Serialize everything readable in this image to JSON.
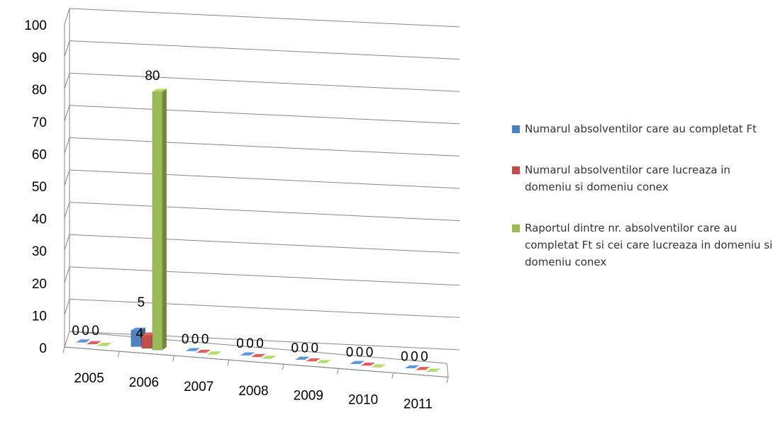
{
  "chart_data": {
    "type": "bar",
    "title": "",
    "xlabel": "",
    "ylabel": "",
    "ylim": [
      0,
      100
    ],
    "yticks": [
      0,
      10,
      20,
      30,
      40,
      50,
      60,
      70,
      80,
      90,
      100
    ],
    "categories": [
      "2005",
      "2006",
      "2007",
      "2008",
      "2009",
      "2010",
      "2011"
    ],
    "grid": true,
    "legend_position": "right",
    "series": [
      {
        "name": "Numarul absolventilor care au completat Ft",
        "color": "#4F81BD",
        "values": [
          0,
          5,
          0,
          0,
          0,
          0,
          0
        ],
        "labels": [
          "0",
          "5",
          "0",
          "0",
          "0",
          "0",
          "0"
        ]
      },
      {
        "name": "Numarul absolventilor care  lucreaza in domeniu si domeniu conex",
        "color": "#C0504D",
        "values": [
          0,
          4,
          0,
          0,
          0,
          0,
          0
        ],
        "labels": [
          "0",
          "4",
          "0",
          "0",
          "0",
          "0",
          "0"
        ]
      },
      {
        "name": "Raportul  dintre nr. absolventilor care au completat Ft si cei care lucreaza in domeniu si domeniu conex",
        "color": "#9BBB59",
        "values": [
          0,
          80,
          0,
          0,
          0,
          0,
          0
        ],
        "labels": [
          "0",
          "80",
          "0",
          "0",
          "0",
          "0",
          "0"
        ]
      }
    ]
  }
}
